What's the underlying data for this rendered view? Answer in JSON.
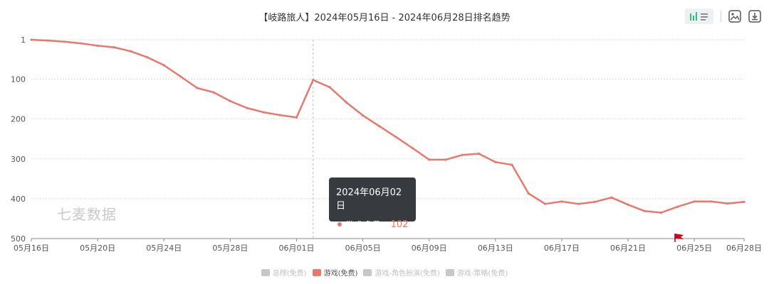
{
  "chart_data": {
    "type": "line",
    "title": "【岐路旅人】2024年05月16日 - 2024年06月28日排名趋势",
    "x": [
      "05月16日",
      "05月17日",
      "05月18日",
      "05月19日",
      "05月20日",
      "05月21日",
      "05月22日",
      "05月23日",
      "05月24日",
      "05月25日",
      "05月26日",
      "05月27日",
      "05月28日",
      "05月29日",
      "05月30日",
      "05月31日",
      "06月01日",
      "06月02日",
      "06月03日",
      "06月04日",
      "06月05日",
      "06月06日",
      "06月07日",
      "06月08日",
      "06月09日",
      "06月10日",
      "06月11日",
      "06月12日",
      "06月13日",
      "06月14日",
      "06月15日",
      "06月16日",
      "06月17日",
      "06月18日",
      "06月19日",
      "06月20日",
      "06月21日",
      "06月22日",
      "06月23日",
      "06月24日",
      "06月25日",
      "06月26日",
      "06月27日",
      "06月28日"
    ],
    "x_tick_labels": [
      "05月16日",
      "05月20日",
      "05月24日",
      "05月28日",
      "06月01日",
      "06月05日",
      "06月09日",
      "06月13日",
      "06月17日",
      "06月21日",
      "06月25日",
      "06月28日"
    ],
    "y_tick_labels": [
      "1",
      "100",
      "200",
      "300",
      "400",
      "500"
    ],
    "ylim": [
      1,
      500
    ],
    "y_inverted": true,
    "grid": true,
    "series": [
      {
        "name": "游戏(免费)",
        "color": "#e8786e",
        "values": [
          1,
          3,
          6,
          10,
          16,
          20,
          30,
          45,
          65,
          93,
          122,
          133,
          155,
          172,
          183,
          190,
          196,
          102,
          120,
          158,
          191,
          218,
          245,
          273,
          302,
          302,
          290,
          287,
          308,
          315,
          387,
          413,
          407,
          413,
          408,
          397,
          415,
          431,
          435,
          420,
          407,
          407,
          412,
          408
        ]
      }
    ],
    "legend_position": "bottom"
  },
  "legend": [
    {
      "label": "总榜(免费)",
      "active": false
    },
    {
      "label": "游戏(免费)",
      "active": true
    },
    {
      "label": "游戏-角色扮演(免费)",
      "active": false
    },
    {
      "label": "游戏-策略(免费)",
      "active": false
    }
  ],
  "tooltip": {
    "date": "2024年06月02日",
    "series": "游戏(免费)",
    "value": "102",
    "x_index": 17
  },
  "watermark": "七麦数据",
  "toolbar": {
    "icons": [
      "bar-chart-icon",
      "list-icon",
      "image-icon",
      "download-icon"
    ]
  },
  "marker": {
    "icon": "flag-icon",
    "date": "06月24日",
    "color": "#d0021b"
  }
}
